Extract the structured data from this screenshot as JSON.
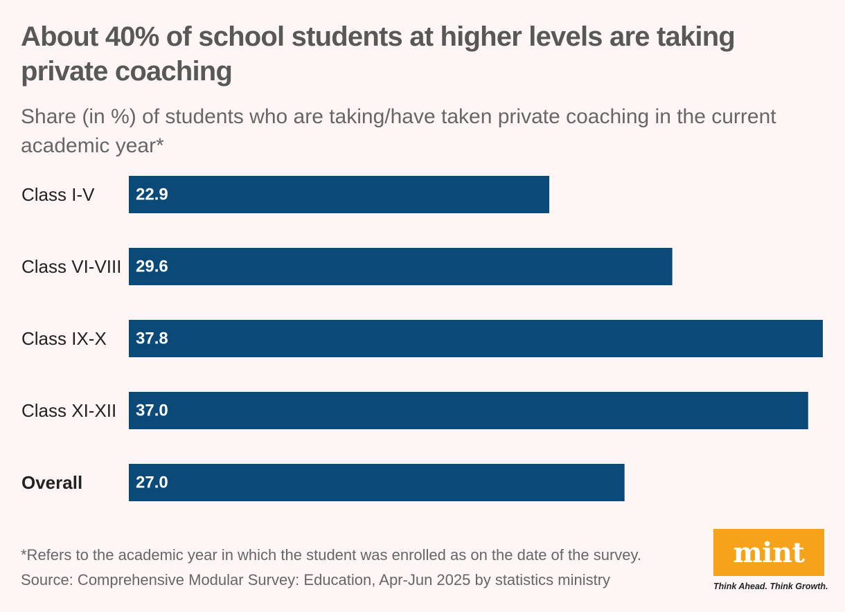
{
  "chart_data": {
    "type": "bar",
    "orientation": "horizontal",
    "title": "About 40% of school students at higher levels are taking private coaching",
    "subtitle": "Share (in %) of students who are taking/have taken private coaching in the current academic year*",
    "categories": [
      "Class I-V",
      "Class VI-VIII",
      "Class IX-X",
      "Class XI-XII",
      "Overall"
    ],
    "values": [
      22.9,
      29.6,
      37.8,
      37.0,
      27.0
    ],
    "value_labels": [
      "22.9",
      "29.6",
      "37.8",
      "37.0",
      "27.0"
    ],
    "bold_categories": [
      "Overall"
    ],
    "bar_color": "#0b4a78",
    "xlim": [
      0,
      37.8
    ],
    "grid": false,
    "legend": "none"
  },
  "footnote": "*Refers to the academic year in which the student was enrolled as on the date of the survey.",
  "source": "Source: Comprehensive Modular Survey: Education, Apr-Jun 2025 by statistics ministry",
  "logo": {
    "word": "mint",
    "tagline": "Think Ahead. Think Growth.",
    "color": "#f7a21b"
  }
}
